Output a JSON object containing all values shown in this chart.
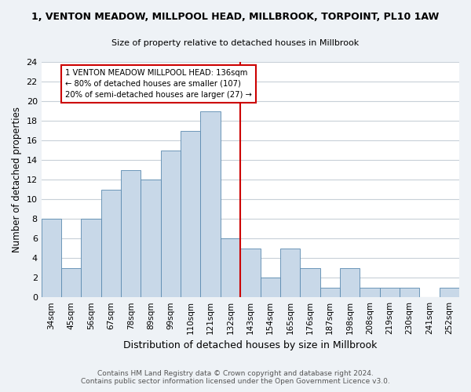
{
  "title": "1, VENTON MEADOW, MILLPOOL HEAD, MILLBROOK, TORPOINT, PL10 1AW",
  "subtitle": "Size of property relative to detached houses in Millbrook",
  "xlabel": "Distribution of detached houses by size in Millbrook",
  "ylabel": "Number of detached properties",
  "bin_labels": [
    "34sqm",
    "45sqm",
    "56sqm",
    "67sqm",
    "78sqm",
    "89sqm",
    "99sqm",
    "110sqm",
    "121sqm",
    "132sqm",
    "143sqm",
    "154sqm",
    "165sqm",
    "176sqm",
    "187sqm",
    "198sqm",
    "208sqm",
    "219sqm",
    "230sqm",
    "241sqm",
    "252sqm"
  ],
  "bar_heights": [
    8,
    3,
    8,
    11,
    13,
    12,
    15,
    17,
    19,
    6,
    5,
    2,
    5,
    3,
    1,
    3,
    1,
    1,
    1,
    0,
    1
  ],
  "bar_color": "#c8d8e8",
  "bar_edge_color": "#5a8ab0",
  "vline_x_idx": 9,
  "annotation_line1": "1 VENTON MEADOW MILLPOOL HEAD: 136sqm",
  "annotation_line2": "← 80% of detached houses are smaller (107)",
  "annotation_line3": "20% of semi-detached houses are larger (27) →",
  "annotation_box_color": "#ffffff",
  "annotation_box_edge": "#cc0000",
  "vline_color": "#cc0000",
  "ylim": [
    0,
    24
  ],
  "yticks": [
    0,
    2,
    4,
    6,
    8,
    10,
    12,
    14,
    16,
    18,
    20,
    22,
    24
  ],
  "footer1": "Contains HM Land Registry data © Crown copyright and database right 2024.",
  "footer2": "Contains public sector information licensed under the Open Government Licence v3.0.",
  "bg_color": "#eef2f6",
  "plot_bg_color": "#ffffff",
  "grid_color": "#c8d0d8"
}
